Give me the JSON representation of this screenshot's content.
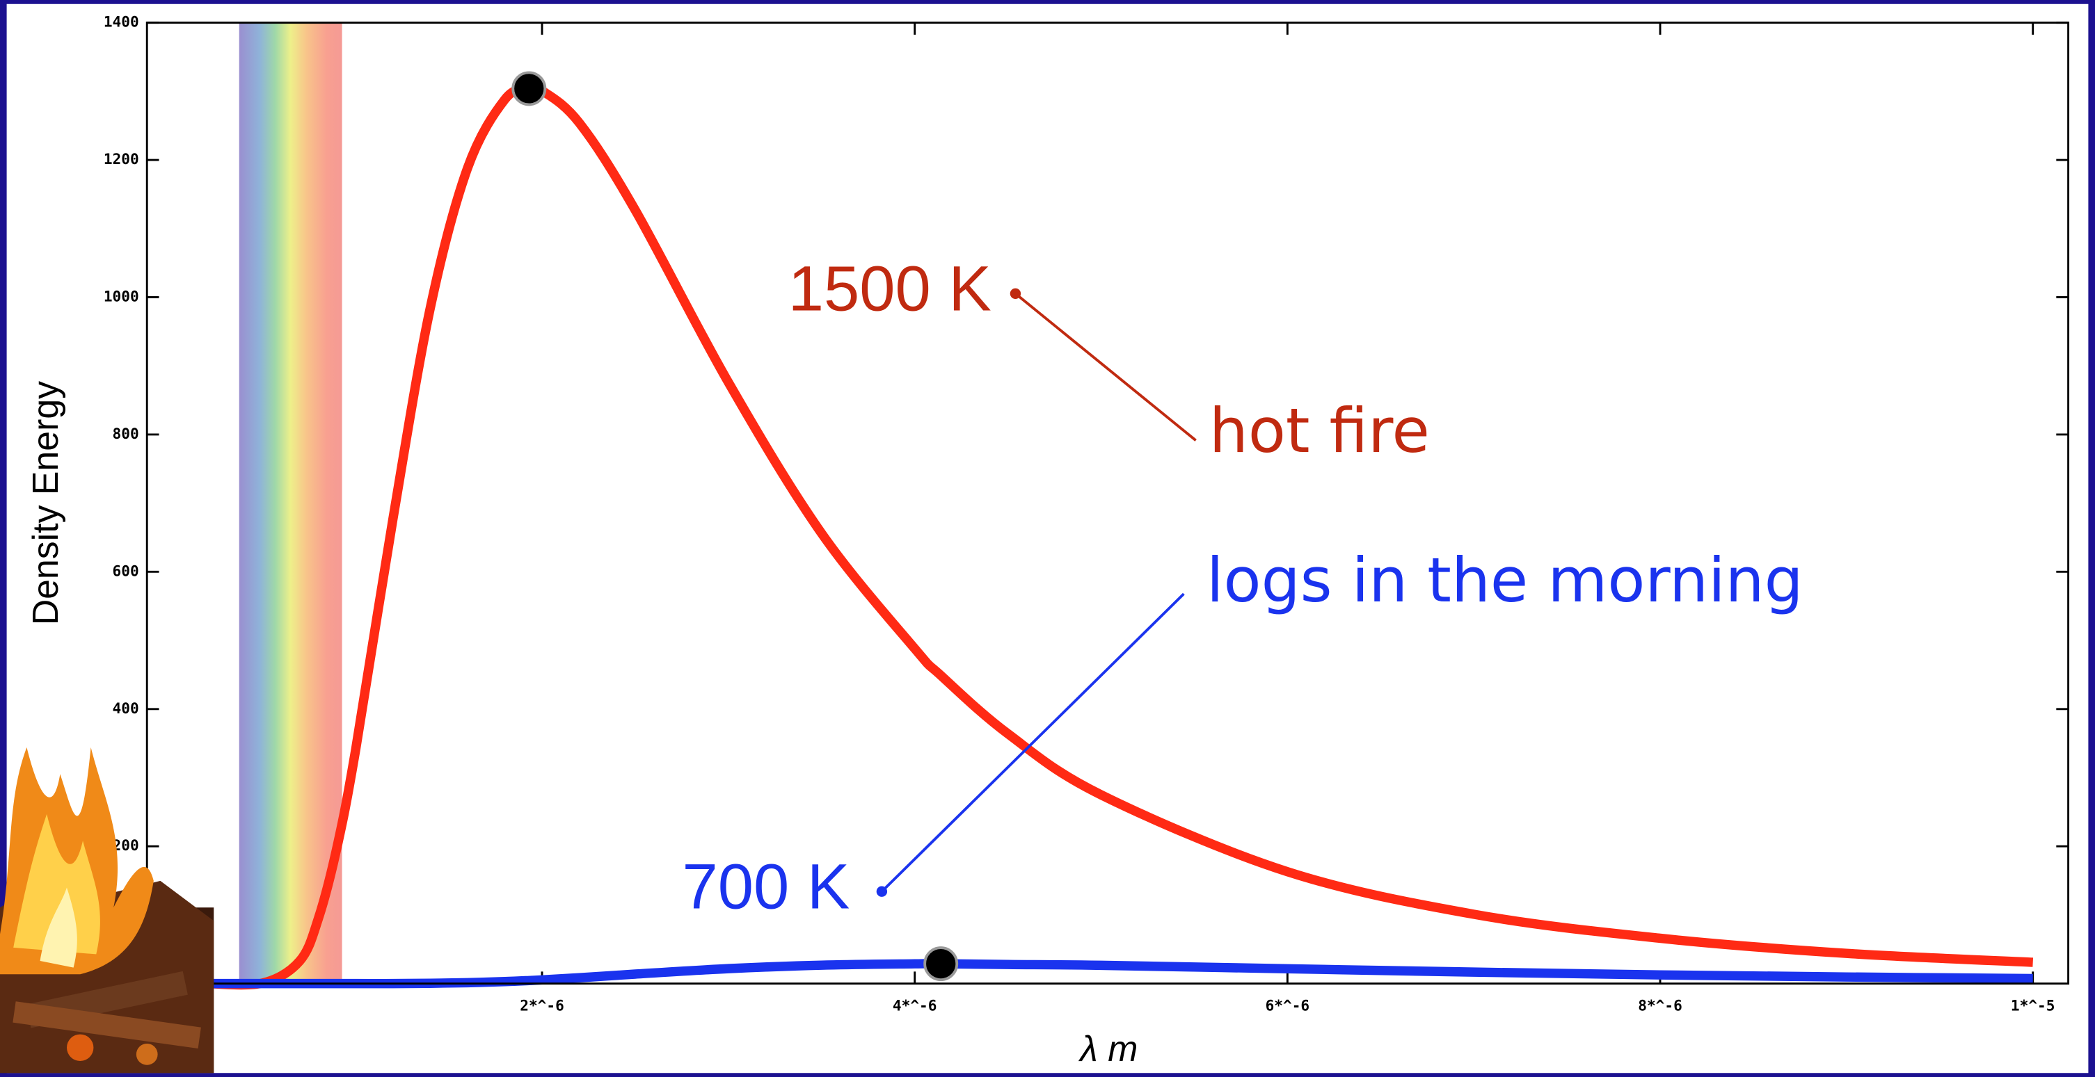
{
  "chart_data": {
    "type": "line",
    "x_label": "λ m",
    "y_label": "Density Energy",
    "x": [
      2e-07,
      5e-07,
      7e-07,
      8e-07,
      9e-07,
      1e-06,
      1.2e-06,
      1.4e-06,
      1.6e-06,
      1.8e-06,
      1.93e-06,
      2e-06,
      2.2e-06,
      2.5e-06,
      3e-06,
      3.5e-06,
      4e-06,
      4.14e-06,
      4.5e-06,
      5e-06,
      6e-06,
      7e-06,
      8e-06,
      9e-06,
      1e-05
    ],
    "series": [
      {
        "name": "1500 K",
        "color": "#ff2a14",
        "values": [
          0,
          0.75,
          33,
          95,
          199,
          341,
          677,
          984,
          1188,
          1288,
          1304,
          1301,
          1254,
          1127,
          876,
          656,
          488,
          449,
          364,
          275,
          163,
          101,
          66,
          44,
          31
        ]
      },
      {
        "name": "700 K",
        "color": "#1a33ee",
        "values": [
          0,
          0,
          0,
          0,
          0,
          0,
          0,
          0.4,
          1.3,
          2.9,
          4.4,
          5.4,
          8.5,
          13.8,
          21.8,
          26.8,
          28.8,
          28.9,
          27.8,
          26.6,
          21.6,
          16.7,
          12.6,
          9.6,
          7.3
        ]
      }
    ],
    "annotations": [
      "hot fire",
      "logs in the morning"
    ],
    "xlim": [
      -1.2e-07,
      1.019e-05
    ],
    "ylim": [
      0,
      1400
    ],
    "xticks": [
      {
        "value": 2e-06,
        "label": "2*^-6"
      },
      {
        "value": 4e-06,
        "label": "4*^-6"
      },
      {
        "value": 6e-06,
        "label": "6*^-6"
      },
      {
        "value": 8e-06,
        "label": "8*^-6"
      },
      {
        "value": 1e-05,
        "label": "1*^-5"
      }
    ],
    "yticks": [
      200,
      400,
      600,
      800,
      1000,
      1200,
      1400
    ]
  }
}
